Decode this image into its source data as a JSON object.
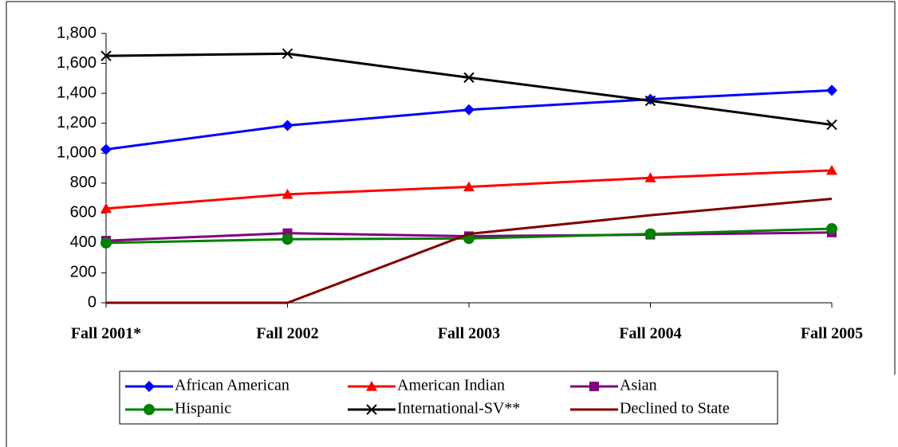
{
  "chart_data": {
    "type": "line",
    "categories": [
      "Fall 2001*",
      "Fall 2002",
      "Fall 2003",
      "Fall 2004",
      "Fall 2005"
    ],
    "series": [
      {
        "name": "African American",
        "color": "#0000ff",
        "marker": "diamond",
        "values": [
          1025,
          1185,
          1290,
          1360,
          1420
        ]
      },
      {
        "name": "American Indian",
        "color": "#ff0000",
        "marker": "triangle",
        "values": [
          630,
          725,
          775,
          835,
          885
        ]
      },
      {
        "name": "Asian",
        "color": "#800080",
        "marker": "square",
        "values": [
          415,
          465,
          445,
          455,
          470
        ]
      },
      {
        "name": "Hispanic",
        "color": "#008000",
        "marker": "circle",
        "values": [
          400,
          425,
          430,
          460,
          495
        ]
      },
      {
        "name": "International-SV**",
        "color": "#000000",
        "marker": "x",
        "values": [
          1650,
          1665,
          1505,
          1350,
          1190
        ]
      },
      {
        "name": "Declined to State",
        "color": "#800000",
        "marker": "none",
        "values": [
          0,
          0,
          460,
          585,
          695
        ]
      }
    ],
    "ylim": [
      0,
      1800
    ],
    "yticks": [
      0,
      200,
      400,
      600,
      800,
      {
        "value": 1000,
        "label": "1,000"
      },
      {
        "value": 1200,
        "label": "1,200"
      },
      {
        "value": 1400,
        "label": "1,400"
      },
      {
        "value": 1600,
        "label": "1,600"
      },
      {
        "value": 1800,
        "label": "1,800"
      }
    ],
    "grid": false,
    "legend": "bottom"
  }
}
